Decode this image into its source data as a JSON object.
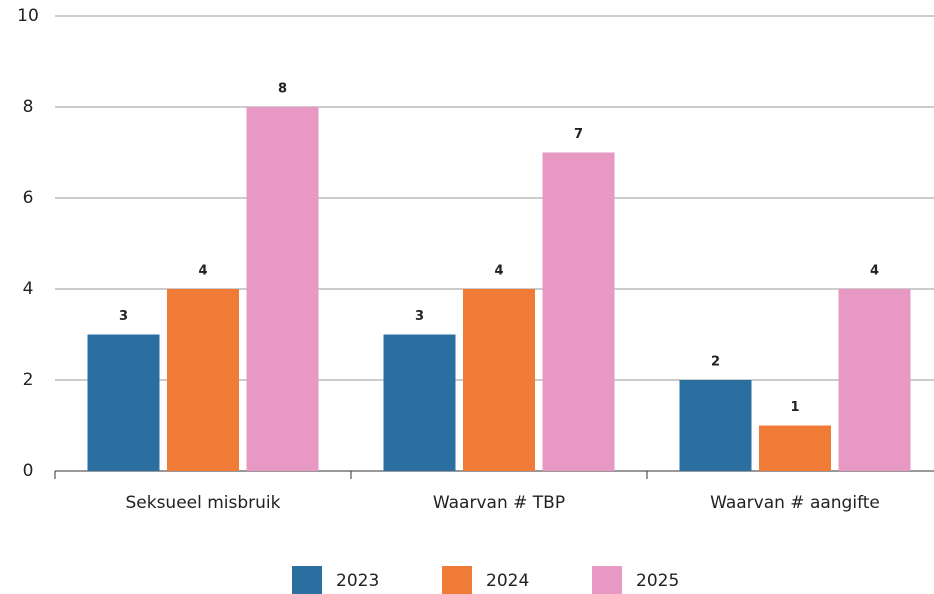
{
  "chart_data": {
    "type": "bar",
    "categories": [
      "Seksueel misbruik",
      "Waarvan # TBP",
      "Waarvan # aangifte"
    ],
    "series": [
      {
        "name": "2023",
        "color": "#2a6f9f",
        "values": [
          3,
          3,
          2
        ]
      },
      {
        "name": "2024",
        "color": "#f07b36",
        "values": [
          4,
          4,
          1
        ]
      },
      {
        "name": "2025",
        "color": "#e899c3",
        "values": [
          8,
          7,
          4
        ]
      }
    ],
    "ylim": [
      0,
      10
    ],
    "yticks": [
      0,
      2,
      4,
      6,
      8,
      10
    ],
    "grid": true,
    "legend": "bottom"
  }
}
